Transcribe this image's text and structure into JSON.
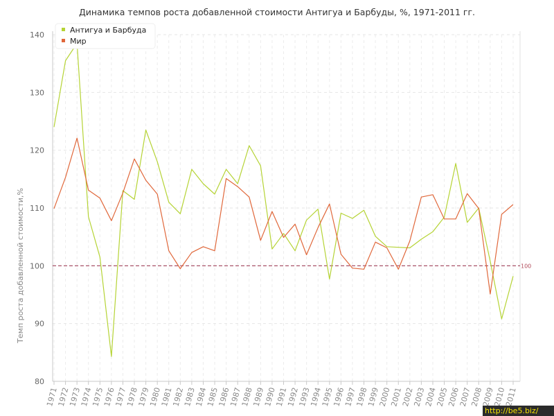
{
  "chart_data": {
    "type": "line",
    "title": "Динамика темпов роста добавленной стоимости Антигуа и Барбуды, %, 1971-2011 гг.",
    "ylabel": "Темп роста добавленной стоимости,%",
    "xlabel": "",
    "ylim": [
      80,
      140
    ],
    "yticks": [
      80,
      90,
      100,
      110,
      120,
      130,
      140
    ],
    "grid": true,
    "legend_position": "top-left",
    "reference_line": {
      "value": 100,
      "label": "100",
      "color": "#a0405a"
    },
    "x": [
      1971,
      1972,
      1973,
      1974,
      1975,
      1976,
      1977,
      1978,
      1979,
      1980,
      1981,
      1982,
      1983,
      1984,
      1985,
      1986,
      1987,
      1988,
      1989,
      1990,
      1991,
      1992,
      1993,
      1994,
      1995,
      1996,
      1997,
      1998,
      1999,
      2000,
      2001,
      2002,
      2003,
      2004,
      2005,
      2006,
      2007,
      2008,
      2009,
      2010,
      2011
    ],
    "series": [
      {
        "name": "Антигуа и Барбуда",
        "color": "#b5d334",
        "values": [
          124,
          135.5,
          138.5,
          108.5,
          101.5,
          84.3,
          113,
          111.5,
          123.5,
          118,
          111,
          109,
          116.7,
          114.2,
          112.4,
          116.7,
          114.2,
          120.8,
          117.3,
          102.9,
          105.6,
          102.6,
          107.9,
          109.8,
          97.7,
          109.1,
          108.2,
          109.6,
          105.1,
          103.3,
          103.2,
          103.1,
          104.6,
          105.9,
          108.4,
          117.7,
          107.5,
          110,
          100.8,
          90.8,
          98.2
        ]
      },
      {
        "name": "Мир",
        "color": "#e0673a",
        "values": [
          109.9,
          115.3,
          122.1,
          113.1,
          111.7,
          107.8,
          112.6,
          118.5,
          114.8,
          112.4,
          102.6,
          99.5,
          102.3,
          103.3,
          102.6,
          115.1,
          113.7,
          111.9,
          104.4,
          109.4,
          104.9,
          107.2,
          101.9,
          106.6,
          110.7,
          102,
          99.6,
          99.4,
          104.1,
          103.1,
          99.4,
          104.3,
          111.9,
          112.3,
          108.1,
          108.1,
          112.5,
          109.9,
          95.1,
          108.9,
          110.6
        ]
      }
    ]
  },
  "watermark": "http://be5.biz/"
}
